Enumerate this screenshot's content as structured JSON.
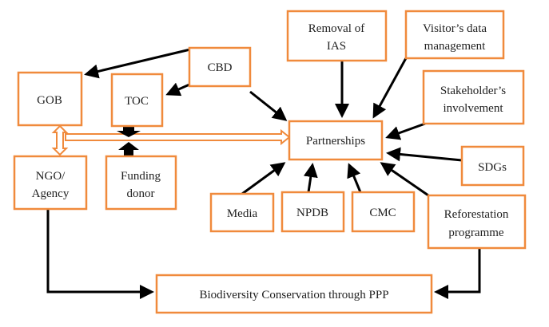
{
  "nodes": {
    "cbd": "CBD",
    "gob": "GOB",
    "toc": "TOC",
    "ngo": [
      "NGO/",
      "Agency"
    ],
    "funding": [
      "Funding",
      "donor"
    ],
    "partnerships": "Partnerships",
    "ias": [
      "Removal of",
      "IAS"
    ],
    "visitor": [
      "Visitor’s data",
      "management"
    ],
    "stakeholder": [
      "Stakeholder’s",
      "involvement"
    ],
    "sdgs": "SDGs",
    "reforestation": [
      "Reforestation",
      "programme"
    ],
    "cmc": "CMC",
    "npdb": "NPDB",
    "media": "Media",
    "biodiversity": "Biodiversity Conservation through PPP"
  },
  "colors": {
    "box_border": "#f08a3c",
    "arrow": "#000000",
    "double_arrow": "#f08a3c"
  }
}
